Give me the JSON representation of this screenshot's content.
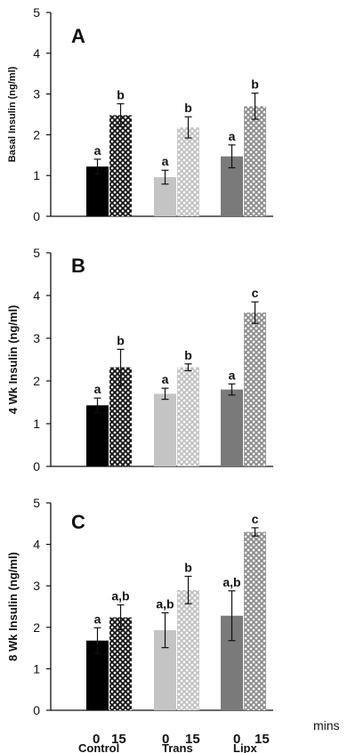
{
  "chart_data": [
    {
      "type": "bar",
      "panel_label": "A",
      "ylabel": "Basal Insulin (ng/ml)",
      "ylim": [
        0,
        5
      ],
      "yticks": [
        "0",
        "1",
        "2",
        "3",
        "4",
        "5"
      ],
      "categories": [
        "Control",
        "Trans",
        "Lipx"
      ],
      "series": [
        {
          "name": "0",
          "values": [
            1.22,
            0.96,
            1.47
          ],
          "errors": [
            0.18,
            0.17,
            0.28
          ],
          "labels": [
            "a",
            "a",
            "a"
          ]
        },
        {
          "name": "15",
          "values": [
            2.48,
            2.18,
            2.7
          ],
          "errors": [
            0.28,
            0.26,
            0.32
          ],
          "labels": [
            "b",
            "b",
            "b"
          ]
        }
      ]
    },
    {
      "type": "bar",
      "panel_label": "B",
      "ylabel": "4 Wk Insulin (ng/ml)",
      "ylim": [
        0,
        5
      ],
      "yticks": [
        "0",
        "1",
        "2",
        "3",
        "4",
        "5"
      ],
      "categories": [
        "Control",
        "Trans",
        "Lipx"
      ],
      "series": [
        {
          "name": "0",
          "values": [
            1.43,
            1.7,
            1.8
          ],
          "errors": [
            0.17,
            0.13,
            0.13
          ],
          "labels": [
            "a",
            "a",
            "a"
          ]
        },
        {
          "name": "15",
          "values": [
            2.32,
            2.32,
            3.6
          ],
          "errors": [
            0.42,
            0.08,
            0.25
          ],
          "labels": [
            "b",
            "b",
            "c"
          ]
        }
      ]
    },
    {
      "type": "bar",
      "panel_label": "C",
      "ylabel": "8 Wk Insulin (ng/ml)",
      "ylim": [
        0,
        5
      ],
      "yticks": [
        "0",
        "1",
        "2",
        "3",
        "4",
        "5"
      ],
      "categories": [
        "Control",
        "Trans",
        "Lipx"
      ],
      "series": [
        {
          "name": "0",
          "values": [
            1.68,
            1.93,
            2.28
          ],
          "errors": [
            0.31,
            0.42,
            0.6
          ],
          "labels": [
            "a",
            "a,b",
            "a,b"
          ]
        },
        {
          "name": "15",
          "values": [
            2.24,
            2.9,
            4.3
          ],
          "errors": [
            0.3,
            0.33,
            0.1
          ],
          "labels": [
            "a,b",
            "b",
            "c"
          ]
        }
      ]
    }
  ],
  "x_axis": {
    "minute_labels": [
      "0",
      "15"
    ],
    "group_labels": [
      "Control",
      "Trans",
      "Lipx"
    ],
    "units": "mins"
  },
  "colors": {
    "control_0": "#000000",
    "control_15_pattern": "#111111",
    "trans_0": "#c4c4c4",
    "trans_15_pattern": "#c4c4c4",
    "lipx_0": "#7a7a7a",
    "lipx_15_pattern": "#8a8a8a"
  }
}
